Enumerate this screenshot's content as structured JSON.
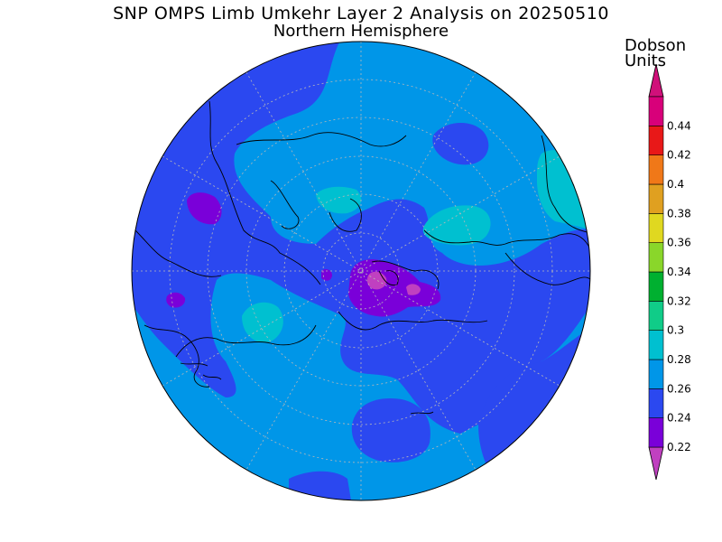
{
  "title": "SNP OMPS Limb Umkehr Layer 2 Analysis on 20250510",
  "subtitle": "Northern Hemisphere",
  "colorbar": {
    "unit_line1": "Dobson",
    "unit_line2": "Units",
    "levels": [
      {
        "label": "0.22",
        "color": "#7a00d9"
      },
      {
        "label": "0.24",
        "color": "#2b48f0"
      },
      {
        "label": "0.26",
        "color": "#0096e8"
      },
      {
        "label": "0.28",
        "color": "#00c0d0"
      },
      {
        "label": "0.3",
        "color": "#10cc88"
      },
      {
        "label": "0.32",
        "color": "#00b030"
      },
      {
        "label": "0.34",
        "color": "#8ad62a"
      },
      {
        "label": "0.36",
        "color": "#e0d820"
      },
      {
        "label": "0.38",
        "color": "#e0a020"
      },
      {
        "label": "0.4",
        "color": "#f07818"
      },
      {
        "label": "0.42",
        "color": "#e81818"
      },
      {
        "label": "0.44",
        "color": "#d8007a"
      }
    ],
    "below_color": "#c040c0",
    "above_color": "#d0107a"
  },
  "map_colors": {
    "base": "#0096e8",
    "low": "#2b48f0",
    "lower": "#7a00d9",
    "lowest": "#c040c0",
    "high": "#00c0d0"
  }
}
